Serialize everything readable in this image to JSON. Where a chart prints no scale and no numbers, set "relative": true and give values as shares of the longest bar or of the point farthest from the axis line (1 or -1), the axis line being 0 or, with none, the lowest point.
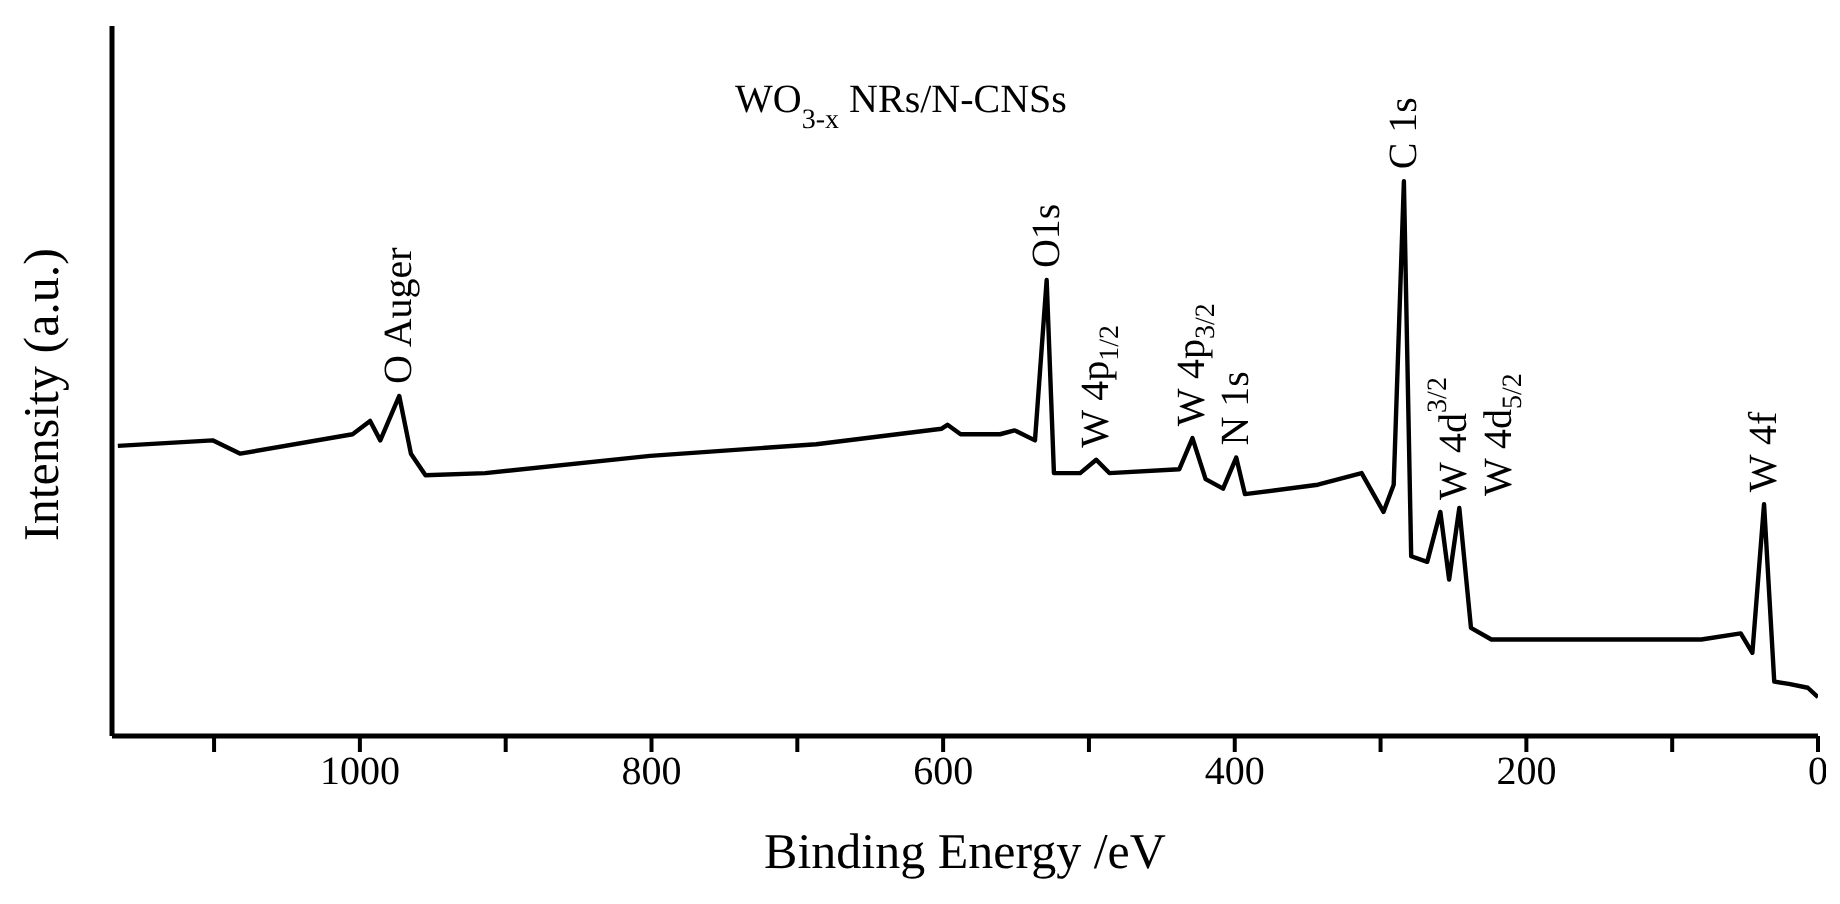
{
  "chart_data": {
    "type": "line",
    "title": "WO$_{3-x}$ NRs/N-CNSs",
    "xlabel": "Binding Energy /eV",
    "ylabel": "Intensity (a.u.)",
    "relative": true,
    "x": [
      1166,
      1101,
      1082,
      1005,
      993,
      986,
      973,
      965,
      955,
      914,
      801,
      687,
      601,
      597,
      588,
      561,
      551,
      537,
      529,
      524,
      506,
      495,
      486,
      438,
      429,
      420,
      408,
      399,
      393,
      343,
      313,
      298,
      291,
      284,
      279,
      268,
      259,
      253,
      246,
      238,
      224,
      80,
      53,
      45,
      37,
      30,
      20,
      7,
      0
    ],
    "series": [
      {
        "color": "#000000",
        "values": [
          0.523,
          0.533,
          0.509,
          0.544,
          0.568,
          0.533,
          0.613,
          0.509,
          0.47,
          0.474,
          0.505,
          0.526,
          0.554,
          0.561,
          0.544,
          0.544,
          0.551,
          0.533,
          0.822,
          0.474,
          0.474,
          0.498,
          0.474,
          0.481,
          0.537,
          0.463,
          0.446,
          0.502,
          0.436,
          0.453,
          0.474,
          0.404,
          0.453,
          1.0,
          0.324,
          0.314,
          0.404,
          0.282,
          0.411,
          0.195,
          0.174,
          0.174,
          0.185,
          0.15,
          0.418,
          0.098,
          0.094,
          0.087,
          0.07
        ]
      }
    ],
    "xlim": [
      1170,
      0
    ],
    "xticks": [
      {
        "value": 1100,
        "label": null
      },
      1000,
      {
        "value": 900,
        "label": null
      },
      800,
      {
        "value": 700,
        "label": null
      },
      600,
      {
        "value": 500,
        "label": null
      },
      400,
      {
        "value": 300,
        "label": null
      },
      200,
      {
        "value": 100,
        "label": null
      },
      0
    ],
    "grid": false,
    "legend": false,
    "marker": "none",
    "line_style": "solid",
    "annotations": [
      {
        "text": "O Auger",
        "x": 973,
        "y": 0.613
      },
      {
        "text": "O1s",
        "x": 529,
        "y": 0.822
      },
      {
        "text": "W 4p$_{1/2}$",
        "x": 495,
        "y": 0.498
      },
      {
        "text": "W 4p$_{3/2}$",
        "x": 429,
        "y": 0.537
      },
      {
        "text": "N 1s",
        "x": 399,
        "y": 0.502
      },
      {
        "text": "C 1s",
        "x": 284,
        "y": 1.0
      },
      {
        "text": "W 4d$^{3/2}$",
        "x": 259,
        "y": 0.404
      },
      {
        "text": "W 4d$_{5/2}$",
        "x": 246,
        "y": 0.411
      },
      {
        "text": "W 4f",
        "x": 37,
        "y": 0.418
      }
    ]
  }
}
